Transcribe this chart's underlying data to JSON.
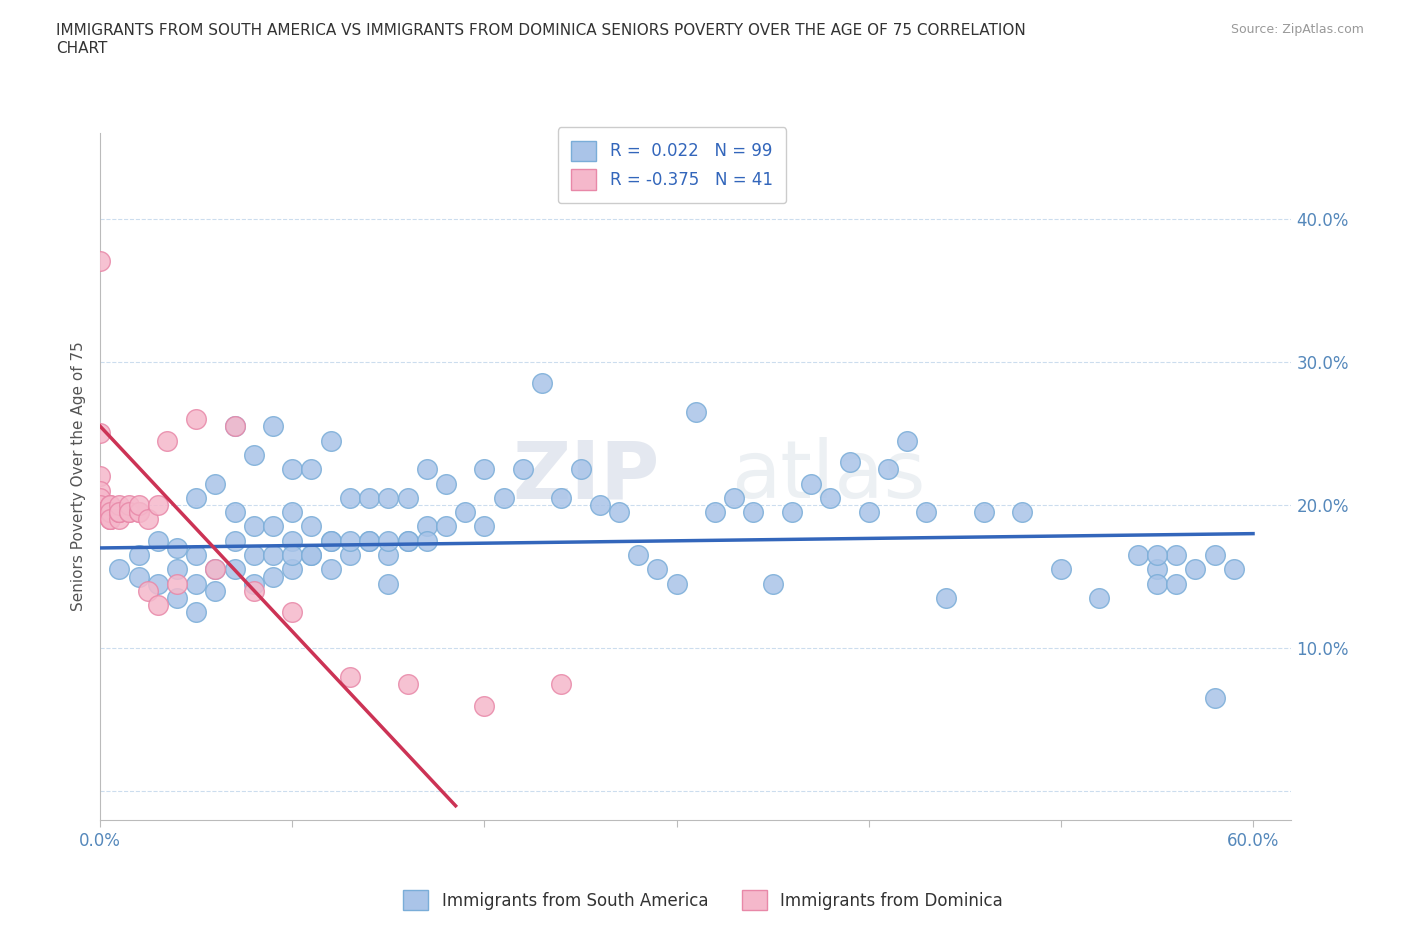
{
  "title": "IMMIGRANTS FROM SOUTH AMERICA VS IMMIGRANTS FROM DOMINICA SENIORS POVERTY OVER THE AGE OF 75 CORRELATION\nCHART",
  "source_text": "Source: ZipAtlas.com",
  "ylabel": "Seniors Poverty Over the Age of 75",
  "xlim": [
    0.0,
    0.62
  ],
  "ylim": [
    -0.02,
    0.46
  ],
  "xticks": [
    0.0,
    0.1,
    0.2,
    0.3,
    0.4,
    0.5,
    0.6
  ],
  "xticklabels": [
    "0.0%",
    "",
    "",
    "",
    "",
    "",
    "60.0%"
  ],
  "yticks": [
    0.0,
    0.1,
    0.2,
    0.3,
    0.4
  ],
  "yticklabels": [
    "",
    "10.0%",
    "20.0%",
    "30.0%",
    "40.0%"
  ],
  "blue_color": "#aac4e8",
  "pink_color": "#f5b8cb",
  "blue_edge": "#7aadd8",
  "pink_edge": "#e888a8",
  "trend_blue": "#3366bb",
  "trend_pink": "#cc3355",
  "R_blue": 0.022,
  "N_blue": 99,
  "R_pink": -0.375,
  "N_pink": 41,
  "legend_label_blue": "Immigrants from South America",
  "legend_label_pink": "Immigrants from Dominica",
  "watermark": "ZIPatlas",
  "blue_scatter_x": [
    0.01,
    0.02,
    0.02,
    0.03,
    0.03,
    0.04,
    0.04,
    0.04,
    0.05,
    0.05,
    0.05,
    0.05,
    0.06,
    0.06,
    0.06,
    0.07,
    0.07,
    0.07,
    0.07,
    0.08,
    0.08,
    0.08,
    0.08,
    0.09,
    0.09,
    0.09,
    0.09,
    0.1,
    0.1,
    0.1,
    0.1,
    0.11,
    0.11,
    0.11,
    0.12,
    0.12,
    0.12,
    0.13,
    0.13,
    0.14,
    0.14,
    0.15,
    0.15,
    0.15,
    0.16,
    0.16,
    0.17,
    0.17,
    0.18,
    0.18,
    0.19,
    0.2,
    0.2,
    0.21,
    0.22,
    0.23,
    0.24,
    0.25,
    0.26,
    0.27,
    0.28,
    0.29,
    0.3,
    0.31,
    0.32,
    0.33,
    0.34,
    0.35,
    0.36,
    0.37,
    0.38,
    0.39,
    0.4,
    0.41,
    0.42,
    0.43,
    0.44,
    0.46,
    0.48,
    0.5,
    0.52,
    0.54,
    0.55,
    0.55,
    0.56,
    0.56,
    0.57,
    0.58,
    0.58,
    0.59,
    0.1,
    0.11,
    0.12,
    0.13,
    0.14,
    0.15,
    0.16,
    0.17,
    0.55
  ],
  "blue_scatter_y": [
    0.155,
    0.15,
    0.165,
    0.145,
    0.175,
    0.135,
    0.155,
    0.17,
    0.125,
    0.145,
    0.165,
    0.205,
    0.14,
    0.155,
    0.215,
    0.155,
    0.175,
    0.195,
    0.255,
    0.145,
    0.165,
    0.185,
    0.235,
    0.15,
    0.165,
    0.185,
    0.255,
    0.155,
    0.175,
    0.195,
    0.225,
    0.165,
    0.185,
    0.225,
    0.155,
    0.175,
    0.245,
    0.165,
    0.205,
    0.175,
    0.205,
    0.145,
    0.165,
    0.205,
    0.175,
    0.205,
    0.185,
    0.225,
    0.185,
    0.215,
    0.195,
    0.185,
    0.225,
    0.205,
    0.225,
    0.285,
    0.205,
    0.225,
    0.2,
    0.195,
    0.165,
    0.155,
    0.145,
    0.265,
    0.195,
    0.205,
    0.195,
    0.145,
    0.195,
    0.215,
    0.205,
    0.23,
    0.195,
    0.225,
    0.245,
    0.195,
    0.135,
    0.195,
    0.195,
    0.155,
    0.135,
    0.165,
    0.155,
    0.145,
    0.165,
    0.145,
    0.155,
    0.165,
    0.065,
    0.155,
    0.165,
    0.165,
    0.175,
    0.175,
    0.175,
    0.175,
    0.175,
    0.175,
    0.165
  ],
  "pink_scatter_x": [
    0.0,
    0.0,
    0.0,
    0.0,
    0.0,
    0.0,
    0.0,
    0.005,
    0.005,
    0.005,
    0.005,
    0.005,
    0.005,
    0.005,
    0.005,
    0.01,
    0.01,
    0.01,
    0.01,
    0.01,
    0.015,
    0.015,
    0.015,
    0.02,
    0.02,
    0.02,
    0.025,
    0.025,
    0.03,
    0.03,
    0.035,
    0.04,
    0.05,
    0.06,
    0.07,
    0.08,
    0.1,
    0.13,
    0.16,
    0.2,
    0.24
  ],
  "pink_scatter_y": [
    0.37,
    0.25,
    0.22,
    0.21,
    0.205,
    0.2,
    0.195,
    0.19,
    0.19,
    0.195,
    0.195,
    0.2,
    0.2,
    0.195,
    0.19,
    0.19,
    0.195,
    0.195,
    0.2,
    0.195,
    0.195,
    0.2,
    0.195,
    0.195,
    0.195,
    0.2,
    0.14,
    0.19,
    0.13,
    0.2,
    0.245,
    0.145,
    0.26,
    0.155,
    0.255,
    0.14,
    0.125,
    0.08,
    0.075,
    0.06,
    0.075
  ],
  "pink_line_x": [
    0.0,
    0.185
  ],
  "pink_line_y_start": 0.255,
  "pink_line_y_end": -0.01,
  "blue_line_x": [
    0.0,
    0.6
  ],
  "blue_line_y_start": 0.17,
  "blue_line_y_end": 0.18
}
